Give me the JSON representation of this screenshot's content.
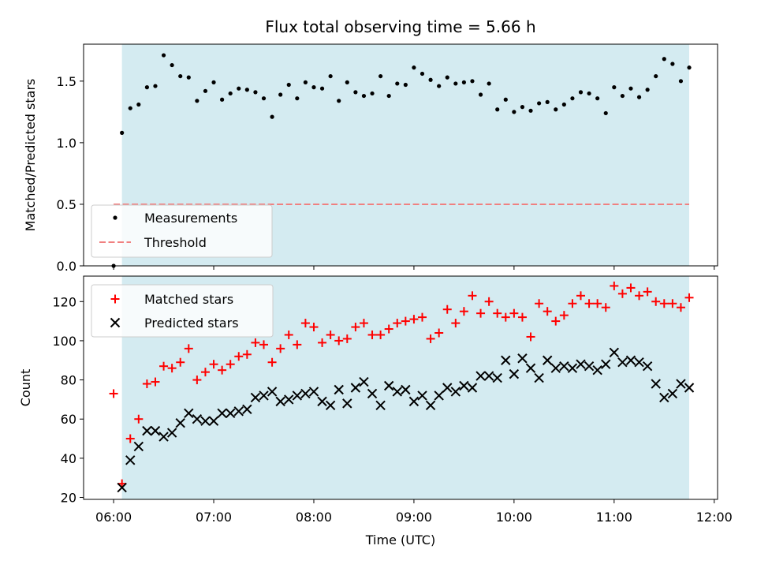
{
  "chart_data": [
    {
      "type": "scatter",
      "panel": "top",
      "title": "Flux total observing time = 5.66 h",
      "ylabel": "Matched/Predicted stars",
      "xlim": [
        "05:42",
        "12:02"
      ],
      "ylim": [
        0,
        1.8
      ],
      "yticks": [
        "0.0",
        "0.5",
        "1.0",
        "1.5"
      ],
      "shaded_region": {
        "from": "06:05",
        "to": "11:45",
        "color": "#d4ebf1"
      },
      "threshold": {
        "value": 0.5,
        "from": "06:00",
        "to": "11:45",
        "color": "#f08080",
        "style": "dashed"
      },
      "legend": {
        "position": "lower-left",
        "entries": [
          "Measurements",
          "Threshold"
        ]
      },
      "series": [
        {
          "name": "Measurements",
          "color": "#000000",
          "marker": "dot",
          "x": [
            "06:00",
            "06:05",
            "06:10",
            "06:15",
            "06:20",
            "06:25",
            "06:30",
            "06:35",
            "06:40",
            "06:45",
            "06:50",
            "06:55",
            "07:00",
            "07:05",
            "07:10",
            "07:15",
            "07:20",
            "07:25",
            "07:30",
            "07:35",
            "07:40",
            "07:45",
            "07:50",
            "07:55",
            "08:00",
            "08:05",
            "08:10",
            "08:15",
            "08:20",
            "08:25",
            "08:30",
            "08:35",
            "08:40",
            "08:45",
            "08:50",
            "08:55",
            "09:00",
            "09:05",
            "09:10",
            "09:15",
            "09:20",
            "09:25",
            "09:30",
            "09:35",
            "09:40",
            "09:45",
            "09:50",
            "09:55",
            "10:00",
            "10:05",
            "10:10",
            "10:15",
            "10:20",
            "10:25",
            "10:30",
            "10:35",
            "10:40",
            "10:45",
            "10:50",
            "10:55",
            "11:00",
            "11:05",
            "11:10",
            "11:15",
            "11:20",
            "11:25",
            "11:30",
            "11:35",
            "11:40",
            "11:45"
          ],
          "y": [
            0.0,
            1.08,
            1.28,
            1.31,
            1.45,
            1.46,
            1.71,
            1.63,
            1.54,
            1.53,
            1.34,
            1.42,
            1.49,
            1.35,
            1.4,
            1.44,
            1.43,
            1.41,
            1.36,
            1.21,
            1.39,
            1.47,
            1.36,
            1.49,
            1.45,
            1.44,
            1.54,
            1.34,
            1.49,
            1.41,
            1.38,
            1.4,
            1.54,
            1.38,
            1.48,
            1.47,
            1.61,
            1.56,
            1.51,
            1.46,
            1.53,
            1.48,
            1.49,
            1.5,
            1.39,
            1.48,
            1.27,
            1.35,
            1.25,
            1.29,
            1.26,
            1.32,
            1.33,
            1.27,
            1.31,
            1.36,
            1.41,
            1.4,
            1.36,
            1.24,
            1.45,
            1.38,
            1.44,
            1.37,
            1.43,
            1.54,
            1.68,
            1.64,
            1.5,
            1.61
          ]
        }
      ]
    },
    {
      "type": "scatter",
      "panel": "bottom",
      "xlabel": "Time (UTC)",
      "ylabel": "Count",
      "xlim": [
        "05:42",
        "12:02"
      ],
      "xticks": [
        "06:00",
        "07:00",
        "08:00",
        "09:00",
        "10:00",
        "11:00",
        "12:00"
      ],
      "ylim": [
        19,
        133
      ],
      "yticks": [
        "20",
        "40",
        "60",
        "80",
        "100",
        "120"
      ],
      "shaded_region": {
        "from": "06:05",
        "to": "11:45",
        "color": "#d4ebf1"
      },
      "legend": {
        "position": "top-left",
        "entries": [
          "Matched stars",
          "Predicted stars"
        ]
      },
      "series": [
        {
          "name": "Matched stars",
          "color": "#ff0000",
          "marker": "plus",
          "x": [
            "06:00",
            "06:05",
            "06:10",
            "06:15",
            "06:20",
            "06:25",
            "06:30",
            "06:35",
            "06:40",
            "06:45",
            "06:50",
            "06:55",
            "07:00",
            "07:05",
            "07:10",
            "07:15",
            "07:20",
            "07:25",
            "07:30",
            "07:35",
            "07:40",
            "07:45",
            "07:50",
            "07:55",
            "08:00",
            "08:05",
            "08:10",
            "08:15",
            "08:20",
            "08:25",
            "08:30",
            "08:35",
            "08:40",
            "08:45",
            "08:50",
            "08:55",
            "09:00",
            "09:05",
            "09:10",
            "09:15",
            "09:20",
            "09:25",
            "09:30",
            "09:35",
            "09:40",
            "09:45",
            "09:50",
            "09:55",
            "10:00",
            "10:05",
            "10:10",
            "10:15",
            "10:20",
            "10:25",
            "10:30",
            "10:35",
            "10:40",
            "10:45",
            "10:50",
            "10:55",
            "11:00",
            "11:05",
            "11:10",
            "11:15",
            "11:20",
            "11:25",
            "11:30",
            "11:35",
            "11:40",
            "11:45"
          ],
          "y": [
            73,
            27,
            50,
            60,
            78,
            79,
            87,
            86,
            89,
            96,
            80,
            84,
            88,
            85,
            88,
            92,
            93,
            99,
            98,
            89,
            96,
            103,
            98,
            109,
            107,
            99,
            103,
            100,
            101,
            107,
            109,
            103,
            103,
            106,
            109,
            110,
            111,
            112,
            101,
            104,
            116,
            109,
            115,
            123,
            114,
            120,
            114,
            112,
            114,
            112,
            102,
            119,
            115,
            110,
            113,
            119,
            123,
            119,
            119,
            117,
            128,
            124,
            127,
            123,
            125,
            120,
            119,
            119,
            117,
            122
          ]
        },
        {
          "name": "Predicted stars",
          "color": "#000000",
          "marker": "x",
          "x": [
            "06:05",
            "06:10",
            "06:15",
            "06:20",
            "06:25",
            "06:30",
            "06:35",
            "06:40",
            "06:45",
            "06:50",
            "06:55",
            "07:00",
            "07:05",
            "07:10",
            "07:15",
            "07:20",
            "07:25",
            "07:30",
            "07:35",
            "07:40",
            "07:45",
            "07:50",
            "07:55",
            "08:00",
            "08:05",
            "08:10",
            "08:15",
            "08:20",
            "08:25",
            "08:30",
            "08:35",
            "08:40",
            "08:45",
            "08:50",
            "08:55",
            "09:00",
            "09:05",
            "09:10",
            "09:15",
            "09:20",
            "09:25",
            "09:30",
            "09:35",
            "09:40",
            "09:45",
            "09:50",
            "09:55",
            "10:00",
            "10:05",
            "10:10",
            "10:15",
            "10:20",
            "10:25",
            "10:30",
            "10:35",
            "10:40",
            "10:45",
            "10:50",
            "10:55",
            "11:00",
            "11:05",
            "11:10",
            "11:15",
            "11:20",
            "11:25",
            "11:30",
            "11:35",
            "11:40",
            "11:45"
          ],
          "y": [
            25,
            39,
            46,
            54,
            54,
            51,
            53,
            58,
            63,
            60,
            59,
            59,
            63,
            63,
            64,
            65,
            71,
            72,
            74,
            69,
            70,
            72,
            73,
            74,
            69,
            67,
            75,
            68,
            76,
            79,
            73,
            67,
            77,
            74,
            75,
            69,
            72,
            67,
            72,
            76,
            74,
            77,
            76,
            82,
            82,
            81,
            90,
            83,
            91,
            86,
            81,
            90,
            86,
            87,
            86,
            88,
            87,
            85,
            88,
            94,
            89,
            90,
            89,
            87,
            78,
            71,
            73,
            78,
            76
          ]
        }
      ]
    }
  ]
}
